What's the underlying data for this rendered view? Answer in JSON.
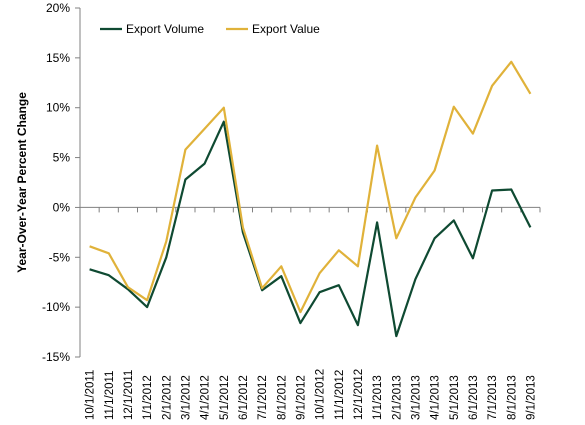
{
  "chart_data": {
    "type": "line",
    "title": "",
    "xlabel": "",
    "ylabel": "Year-Over-Year Percent Change",
    "ylim": [
      -15,
      20
    ],
    "yticks": [
      -15,
      -10,
      -5,
      0,
      5,
      10,
      15,
      20
    ],
    "ytick_labels": [
      "-15%",
      "-10%",
      "-5%",
      "0%",
      "5%",
      "10%",
      "15%",
      "20%"
    ],
    "grid": false,
    "legend_position": "top-left",
    "categories": [
      "10/1/2011",
      "11/1/2011",
      "12/1/2011",
      "1/1/2012",
      "2/1/2012",
      "3/1/2012",
      "4/1/2012",
      "5/1/2012",
      "6/1/2012",
      "7/1/2012",
      "8/1/2012",
      "9/1/2012",
      "10/1/2012",
      "11/1/2012",
      "12/1/2012",
      "1/1/2013",
      "2/1/2013",
      "3/1/2013",
      "4/1/2013",
      "5/1/2013",
      "6/1/2013",
      "7/1/2013",
      "8/1/2013",
      "9/1/2013"
    ],
    "series": [
      {
        "name": "Export Volume",
        "color": "#0f4a32",
        "values": [
          -6.2,
          -6.8,
          -8.2,
          -10.0,
          -5.0,
          2.8,
          4.4,
          8.6,
          -2.5,
          -8.3,
          -6.9,
          -11.6,
          -8.5,
          -7.8,
          -11.8,
          -1.5,
          -12.9,
          -7.2,
          -3.1,
          -1.3,
          -5.1,
          1.7,
          1.8,
          -2.0
        ]
      },
      {
        "name": "Export Value",
        "color": "#e0b23a",
        "values": [
          -3.9,
          -4.6,
          -8.0,
          -9.3,
          -3.4,
          5.8,
          7.9,
          10.0,
          -2.0,
          -8.1,
          -5.9,
          -10.5,
          -6.6,
          -4.3,
          -5.9,
          6.2,
          -3.1,
          1.0,
          3.7,
          10.1,
          7.4,
          12.2,
          14.6,
          11.4
        ]
      }
    ]
  }
}
